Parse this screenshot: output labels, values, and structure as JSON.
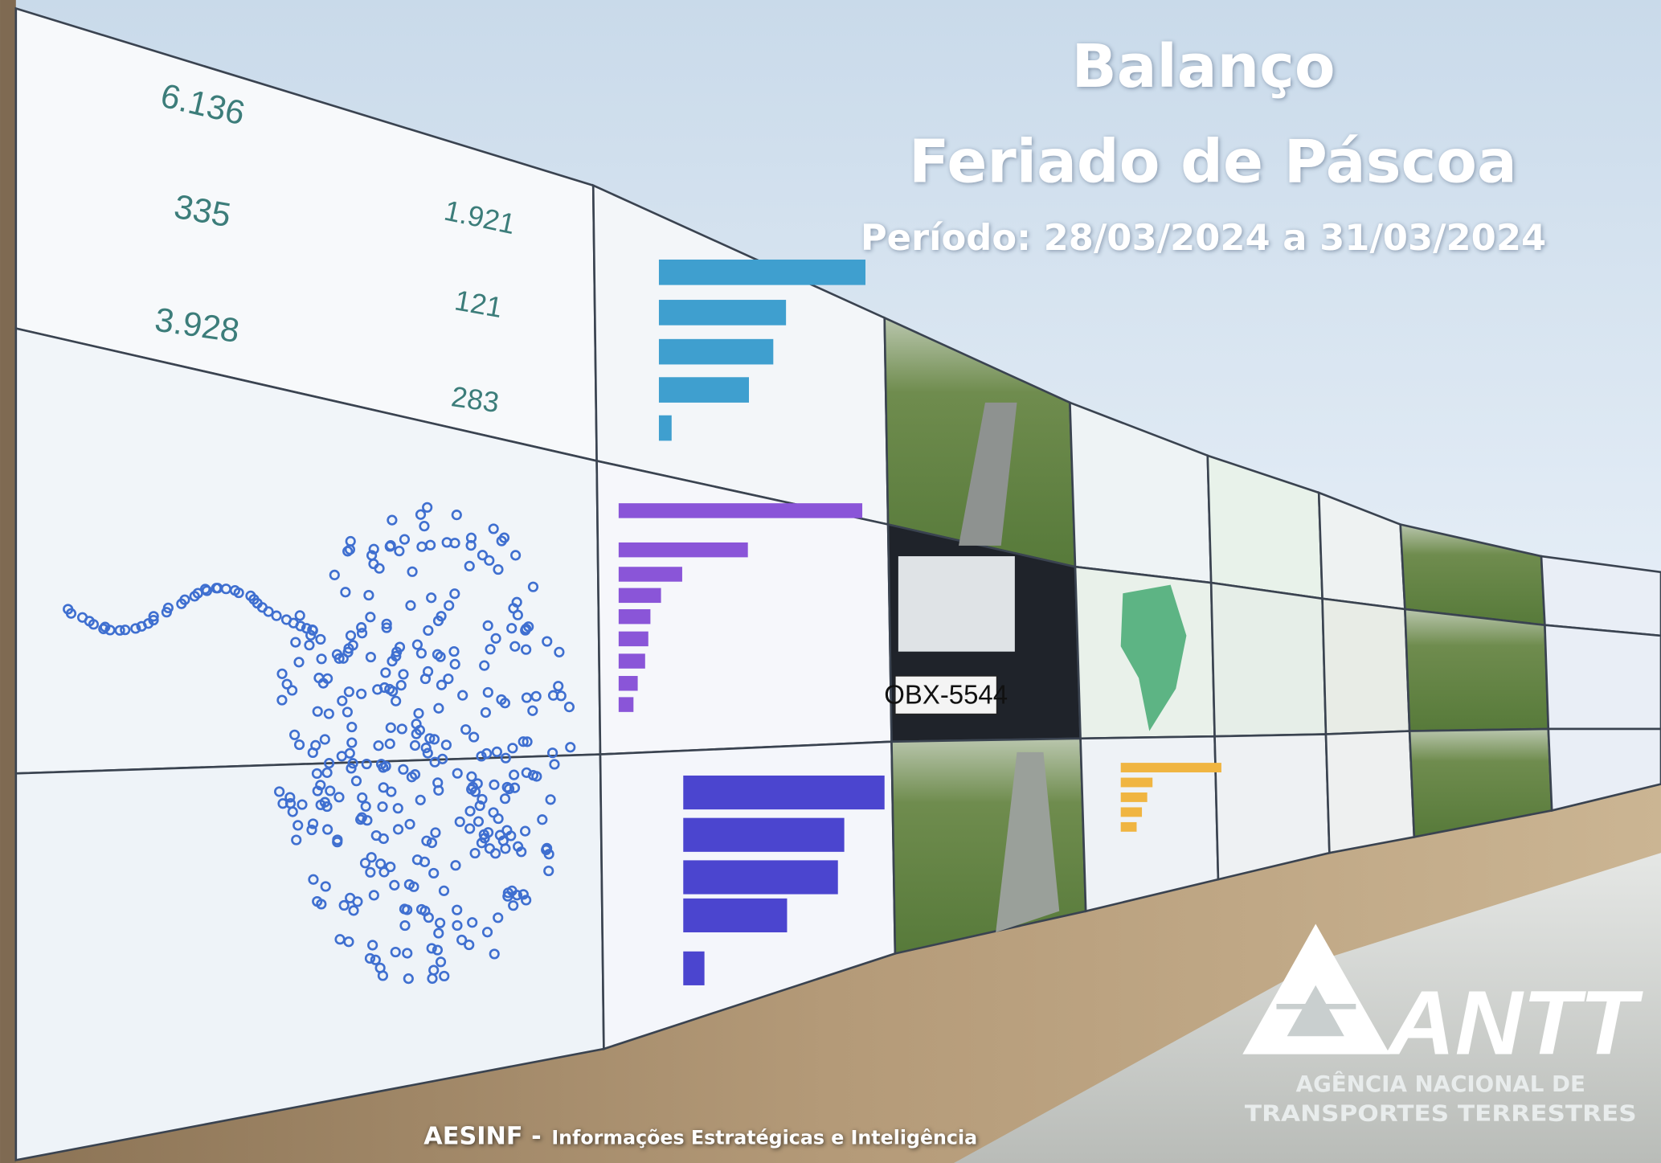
{
  "title": {
    "line1": "Balanço",
    "line2": "Feriado de Páscoa",
    "period": "Período: 28/03/2024 a 31/03/2024"
  },
  "screens": {
    "numbers": [
      "6.136",
      "335",
      "3.928",
      "1.921",
      "121",
      "283"
    ],
    "plate": "OBX-5544"
  },
  "footer": {
    "org": "AESINF -",
    "text": "Informações Estratégicas e Inteligência"
  },
  "logo": {
    "name": "ANTT",
    "line1": "AGÊNCIA NACIONAL DE",
    "line2": "TRANSPORTES TERRESTRES"
  }
}
